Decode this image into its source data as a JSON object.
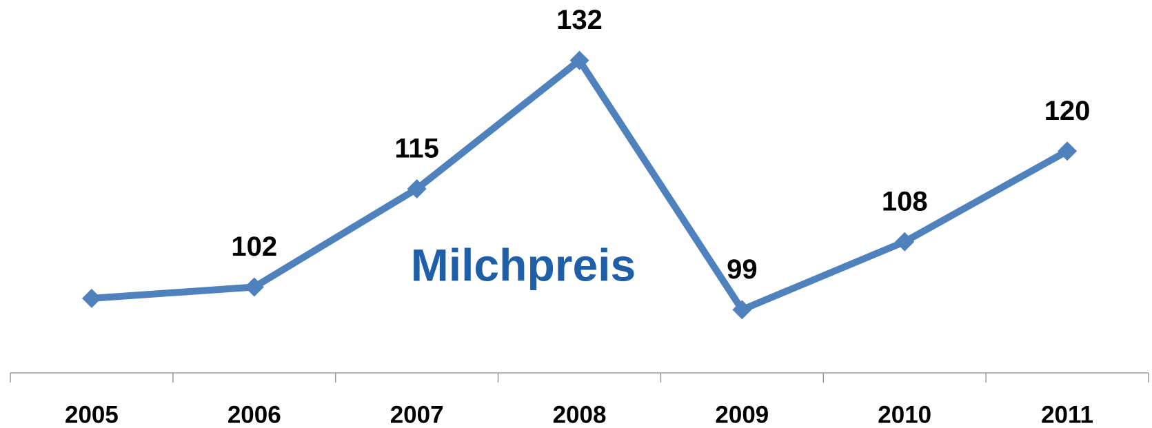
{
  "chart_data": {
    "type": "line",
    "title": "Milchpreis",
    "categories": [
      "2005",
      "2006",
      "2007",
      "2008",
      "2009",
      "2010",
      "2011"
    ],
    "series": [
      {
        "name": "Milchpreis",
        "color": "#4f81bd",
        "values": [
          100.5,
          102,
          115,
          132,
          99,
          108,
          120
        ]
      }
    ],
    "value_labels": [
      null,
      "102",
      "115",
      "132",
      "99",
      "108",
      "120"
    ],
    "ylim": [
      90,
      140
    ],
    "grid": false
  }
}
